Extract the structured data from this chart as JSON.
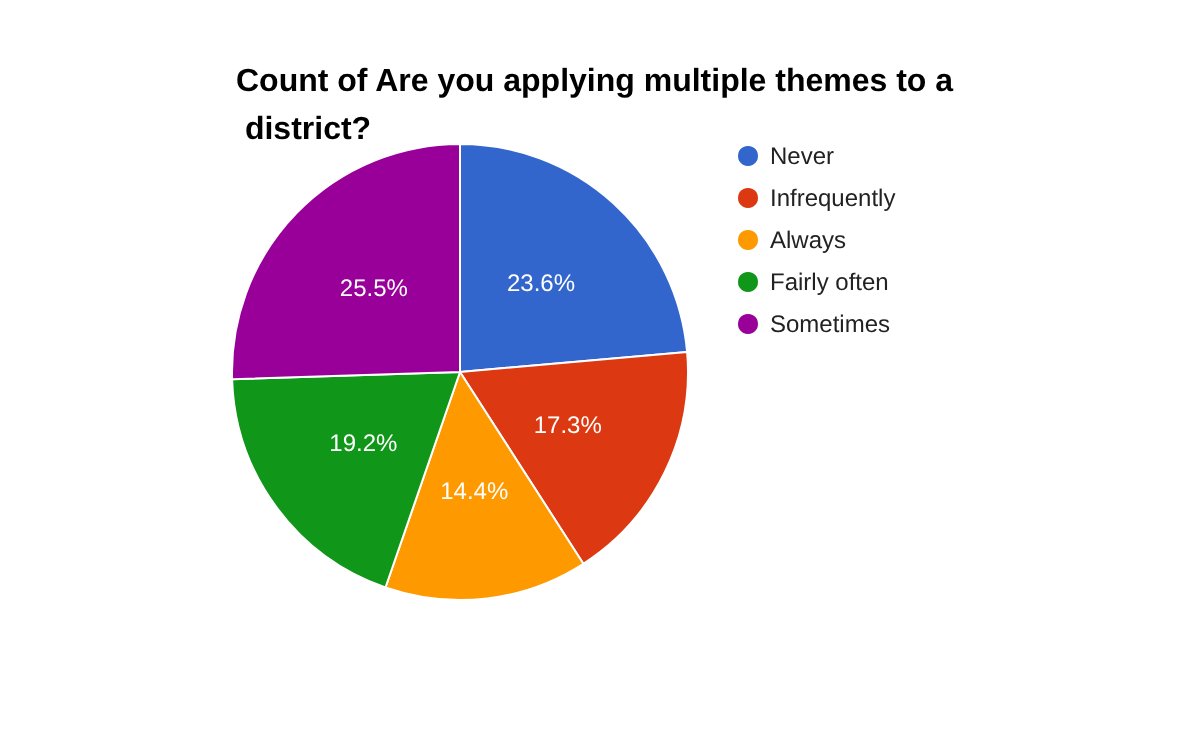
{
  "chart_data": {
    "type": "pie",
    "title": "Count of Are you applying multiple themes to a district?",
    "categories": [
      "Never",
      "Infrequently",
      "Always",
      "Fairly often",
      "Sometimes"
    ],
    "values": [
      23.6,
      17.3,
      14.4,
      19.2,
      25.5
    ],
    "value_labels": [
      "23.6%",
      "17.3%",
      "14.4%",
      "19.2%",
      "25.5%"
    ],
    "colors": [
      "#3366cc",
      "#dc3912",
      "#ff9900",
      "#109618",
      "#990099"
    ],
    "legend": "right"
  }
}
